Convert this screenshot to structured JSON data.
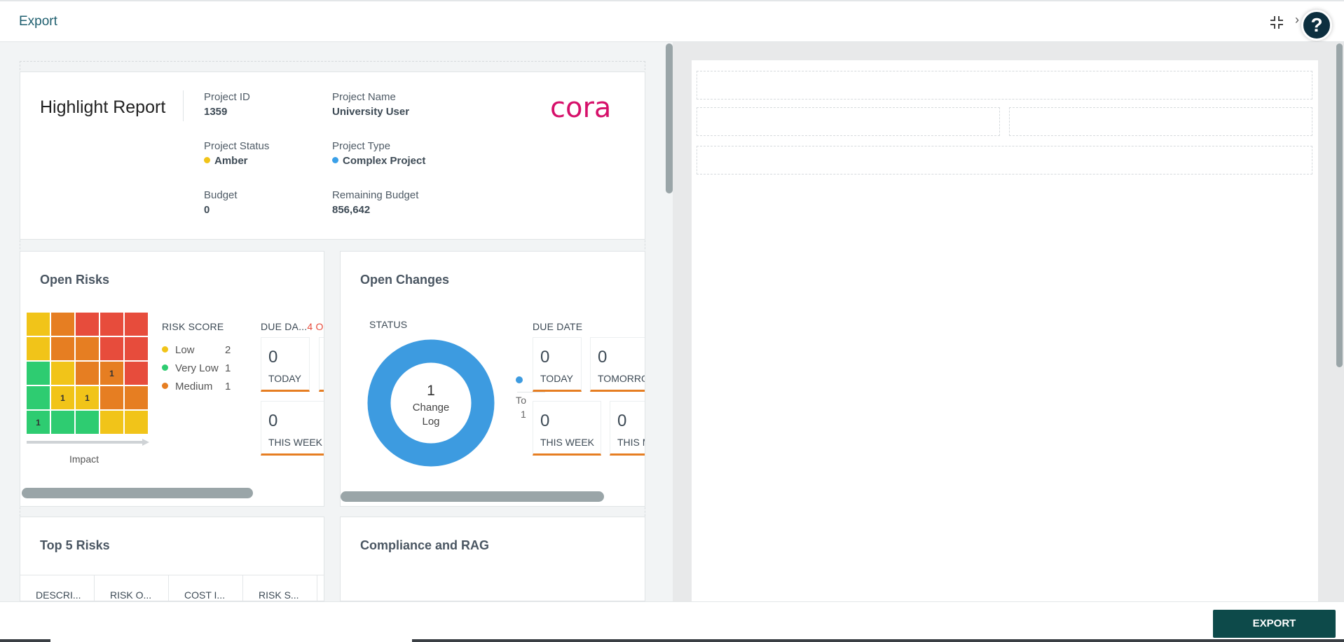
{
  "header": {
    "title": "Export",
    "next_glyph": "›",
    "help_glyph": "?"
  },
  "highlight": {
    "title": "Highlight Report",
    "logo_text": "cora",
    "fields": {
      "project_id": {
        "label": "Project ID",
        "value": "1359"
      },
      "project_name": {
        "label": "Project Name",
        "value": "University User"
      },
      "project_status": {
        "label": "Project Status",
        "value": "Amber",
        "color": "#f1c419"
      },
      "project_type": {
        "label": "Project Type",
        "value": "Complex Project",
        "color": "#3aa0e8"
      },
      "budget": {
        "label": "Budget",
        "value": "0"
      },
      "remaining_budget": {
        "label": "Remaining Budget",
        "value": "856,642"
      }
    }
  },
  "open_risks": {
    "title": "Open Risks",
    "matrix": [
      [
        {
          "c": "y",
          "v": ""
        },
        {
          "c": "o",
          "v": ""
        },
        {
          "c": "r",
          "v": ""
        },
        {
          "c": "r",
          "v": ""
        },
        {
          "c": "r",
          "v": ""
        }
      ],
      [
        {
          "c": "y",
          "v": ""
        },
        {
          "c": "o",
          "v": ""
        },
        {
          "c": "o",
          "v": ""
        },
        {
          "c": "r",
          "v": ""
        },
        {
          "c": "r",
          "v": ""
        }
      ],
      [
        {
          "c": "g",
          "v": ""
        },
        {
          "c": "y",
          "v": ""
        },
        {
          "c": "o",
          "v": ""
        },
        {
          "c": "o",
          "v": "1"
        },
        {
          "c": "r",
          "v": ""
        }
      ],
      [
        {
          "c": "g",
          "v": ""
        },
        {
          "c": "y",
          "v": "1"
        },
        {
          "c": "y",
          "v": "1"
        },
        {
          "c": "o",
          "v": ""
        },
        {
          "c": "o",
          "v": ""
        }
      ],
      [
        {
          "c": "g",
          "v": "1"
        },
        {
          "c": "g",
          "v": ""
        },
        {
          "c": "g",
          "v": ""
        },
        {
          "c": "y",
          "v": ""
        },
        {
          "c": "y",
          "v": ""
        }
      ]
    ],
    "impact_label": "Impact",
    "risk_score_label": "RISK SCORE",
    "legend": [
      {
        "name": "Low",
        "count": "2",
        "color": "#f1c419"
      },
      {
        "name": "Very Low",
        "count": "1",
        "color": "#2ecc71"
      },
      {
        "name": "Medium",
        "count": "1",
        "color": "#e67e22"
      }
    ],
    "due_label": "DUE DA...",
    "overdue_label": "4 O",
    "tiles": [
      {
        "num": "0",
        "cap": "TODAY"
      },
      {
        "num": "0",
        "cap": "THIS WEEK"
      }
    ]
  },
  "open_changes": {
    "title": "Open Changes",
    "status_label": "STATUS",
    "donut": {
      "count": "1",
      "label_line1": "Change",
      "label_line2": "Log",
      "color": "#3d9be0",
      "value": 1
    },
    "legend_partial_1": "To",
    "legend_partial_2": "1",
    "due_label": "DUE DATE",
    "tiles": [
      {
        "num": "0",
        "cap": "TODAY"
      },
      {
        "num": "0",
        "cap": "TOMORROW"
      },
      {
        "num": "0",
        "cap": "THIS WEEK"
      },
      {
        "num": "0",
        "cap": "THIS M"
      }
    ]
  },
  "top_risks": {
    "title": "Top 5 Risks",
    "columns": [
      "DESCRI...",
      "RISK O...",
      "COST I...",
      "RISK S..."
    ]
  },
  "compliance": {
    "title": "Compliance and RAG"
  },
  "footer": {
    "export_label": "EXPORT"
  }
}
